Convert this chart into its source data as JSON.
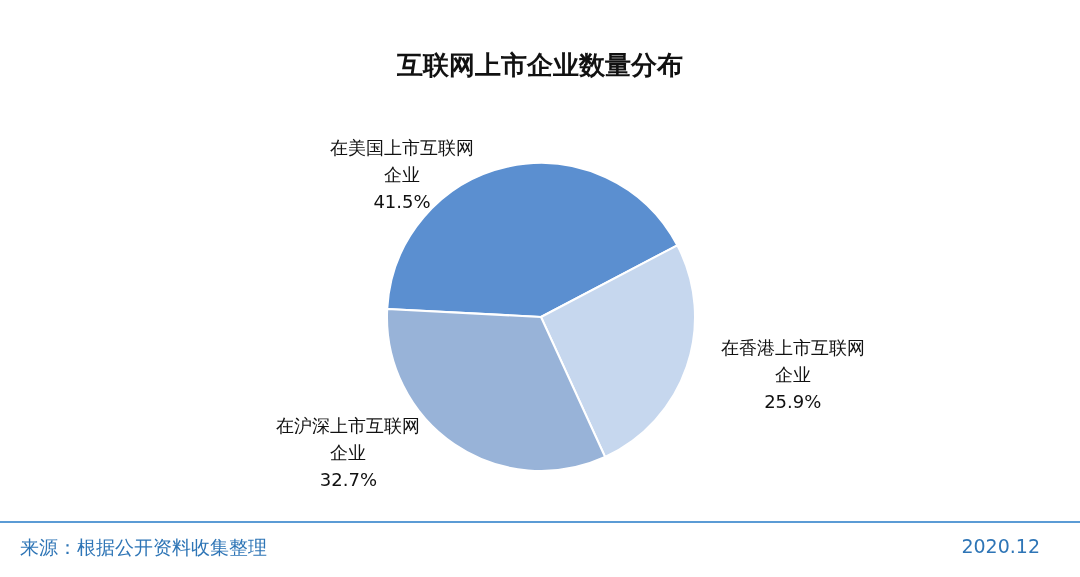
{
  "chart_data": {
    "type": "pie",
    "title": "互联网上市企业数量分布",
    "categories": [
      "在美国上市互联网企业",
      "在香港上市互联网企业",
      "在沪深上市互联网企业"
    ],
    "values": [
      41.5,
      25.9,
      32.7
    ],
    "colors": [
      "#5b8fd0",
      "#c6d7ee",
      "#98b3d8"
    ],
    "value_labels": [
      "41.5%",
      "25.9%",
      "32.7%"
    ],
    "legend": false,
    "annotations": [
      "来源：根据公开资料收集整理",
      "2020.12"
    ]
  }
}
